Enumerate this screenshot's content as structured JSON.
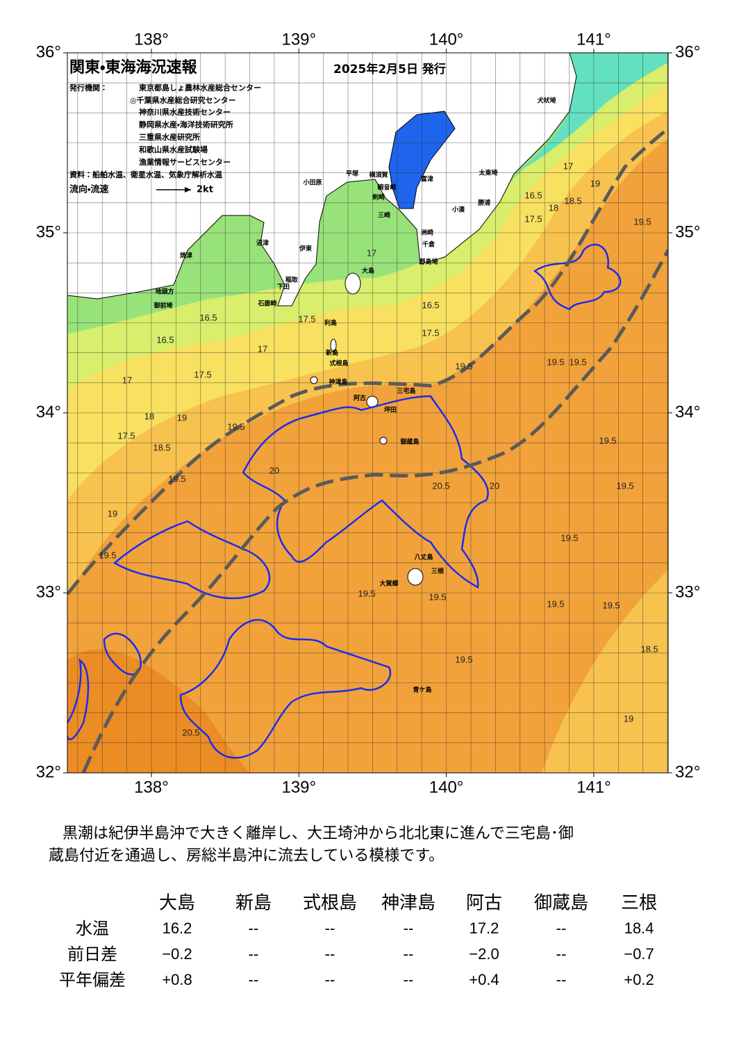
{
  "header": {
    "title": "関東・東海海況速報",
    "date": "2025年2月5日 発行",
    "publisher_label": "発行機関：",
    "publishers": [
      "東京都島しょ農林水産総合センター",
      "◎千葉県水産総合研究センター",
      "神奈川県水産技術センター",
      "静岡県水産・海洋技術研究所",
      "三重県水産研究所",
      "和歌山県水産試験場",
      "漁業情報サービスセンター"
    ],
    "source": "資料：船舶水温、衛星水温、気象庁解析水温",
    "legend_label": "流向・流速",
    "legend_scale": "2kt"
  },
  "map": {
    "lon_ticks": [
      {
        "value": 138,
        "label": "138°"
      },
      {
        "value": 139,
        "label": "139°"
      },
      {
        "value": 140,
        "label": "140°"
      },
      {
        "value": 141,
        "label": "141°"
      }
    ],
    "lat_ticks": [
      {
        "value": 36,
        "label": "36°"
      },
      {
        "value": 35,
        "label": "35°"
      },
      {
        "value": 34,
        "label": "34°"
      },
      {
        "value": 33,
        "label": "33°"
      },
      {
        "value": 32,
        "label": "32°"
      }
    ],
    "places": [
      "大島",
      "利島",
      "新島",
      "式根島",
      "神津島",
      "三宅島",
      "阿古",
      "坪田",
      "御蔵島",
      "八丈島",
      "三根",
      "大賀郷",
      "青ケ島",
      "小田原",
      "平塚",
      "横須賀",
      "観音崎",
      "剣崎",
      "三崎",
      "富津",
      "洲崎",
      "千倉",
      "野島埼",
      "小湊",
      "勝浦",
      "太東埼",
      "犬吠埼",
      "焼津",
      "沼津",
      "伊東",
      "稲取",
      "下田",
      "石廊崎",
      "御前埼",
      "地頭方"
    ],
    "contour_labels": [
      16.5,
      16.5,
      17,
      17,
      17.5,
      17.5,
      18,
      18.5,
      19,
      19.5,
      19.5,
      19,
      19.5,
      20,
      20.5,
      20,
      19.5,
      19.5,
      19.5,
      19.5,
      19.5,
      19.5,
      19.5,
      19.5,
      18.5,
      19,
      20.5,
      19.5,
      19.5,
      19.5,
      16.5,
      17,
      17.5,
      18,
      18.5,
      19,
      19.5,
      17.5,
      16.5,
      17,
      17.5
    ]
  },
  "description": "黒潮は紀伊半島沖で大きく離岸し、大王埼沖から北北東に進んで三宅島･御蔵島付近を通過し、房総半島沖に流去している模様です。",
  "table": {
    "columns": [
      "大島",
      "新島",
      "式根島",
      "神津島",
      "阿古",
      "御蔵島",
      "三根"
    ],
    "rows": [
      {
        "label": "水温",
        "values": [
          "16.2",
          "--",
          "--",
          "--",
          "17.2",
          "--",
          "18.4"
        ]
      },
      {
        "label": "前日差",
        "values": [
          "−0.2",
          "--",
          "--",
          "--",
          "−2.0",
          "--",
          "−0.7"
        ]
      },
      {
        "label": "平年偏差",
        "values": [
          "+0.8",
          "--",
          "--",
          "--",
          "+0.4",
          "--",
          "+0.2"
        ]
      }
    ]
  }
}
